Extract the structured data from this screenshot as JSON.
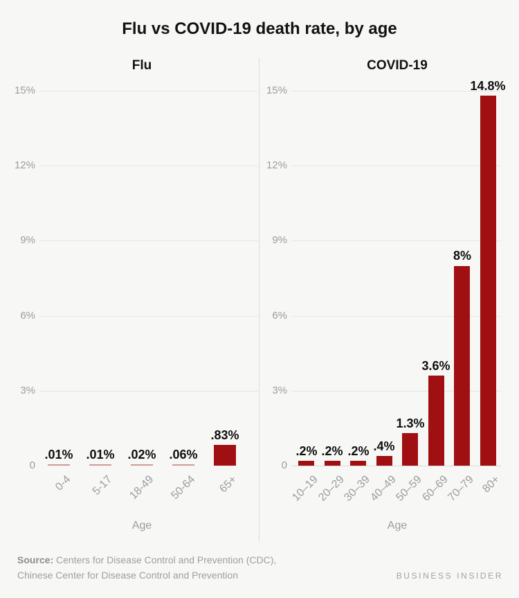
{
  "title": "Flu vs COVID-19 death rate, by age",
  "footer": {
    "source_label": "Source:",
    "source_line1": "Centers for Disease Control and Prevention (CDC),",
    "source_line2": "Chinese Center for Disease Control and Prevention",
    "brand": "BUSINESS INSIDER"
  },
  "colors": {
    "background": "#f7f7f6",
    "bar": "#a01013",
    "bar_tiny": "#d29a94",
    "grid": "#e7e6e4",
    "baseline": "#dbd9d7",
    "axis_text": "#9c9c9c",
    "text": "#0e0e0e"
  },
  "chart_data": [
    {
      "type": "bar",
      "title": "Flu",
      "xlabel": "Age",
      "ylabel": "",
      "categories": [
        "0-4",
        "5-17",
        "18-49",
        "50-64",
        "65+"
      ],
      "values": [
        0.01,
        0.01,
        0.02,
        0.06,
        0.83
      ],
      "value_labels": [
        ".01%",
        ".01%",
        ".02%",
        ".06%",
        ".83%"
      ],
      "yticks": [
        "15%",
        "12%",
        "9%",
        "6%",
        "3%",
        "0"
      ],
      "ytick_values": [
        15,
        12,
        9,
        6,
        3,
        0
      ],
      "ylim": [
        0,
        15
      ],
      "grid": true,
      "baseline_visible": false,
      "legend": "none"
    },
    {
      "type": "bar",
      "title": "COVID-19",
      "xlabel": "Age",
      "ylabel": "",
      "categories": [
        "10–19",
        "20–29",
        "30–39",
        "40–49",
        "50–59",
        "60–69",
        "70–79",
        "80+"
      ],
      "values": [
        0.2,
        0.2,
        0.2,
        0.4,
        1.3,
        3.6,
        8,
        14.8
      ],
      "value_labels": [
        ".2%",
        ".2%",
        ".2%",
        ".4%",
        "1.3%",
        "3.6%",
        "8%",
        "14.8%"
      ],
      "yticks": [
        "15%",
        "12%",
        "9%",
        "6%",
        "3%",
        "0"
      ],
      "ytick_values": [
        15,
        12,
        9,
        6,
        3,
        0
      ],
      "ylim": [
        0,
        15
      ],
      "grid": true,
      "baseline_visible": true,
      "legend": "none"
    }
  ]
}
